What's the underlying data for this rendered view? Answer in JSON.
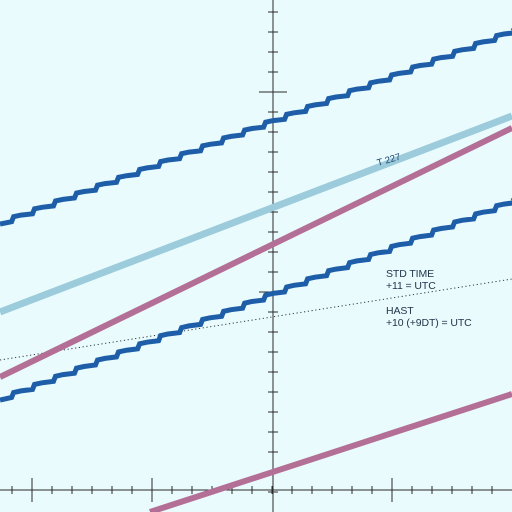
{
  "map": {
    "background_color": "#e9fbfd",
    "axis_color": "#2a2a2a",
    "grid": "tick-marked axes only",
    "elements": {
      "airway_color": "#1e5ea8",
      "light_route_color": "#9ccbdc",
      "pink_route_color": "#b36f95",
      "time_zone_boundary_style": "dotted"
    }
  },
  "labels": {
    "route_name": "T 227",
    "zone_upper_line1": "STD TIME",
    "zone_upper_line2": "+11 = UTC",
    "zone_lower_line1": "HAST",
    "zone_lower_line2": "+10 (+9DT) = UTC"
  }
}
